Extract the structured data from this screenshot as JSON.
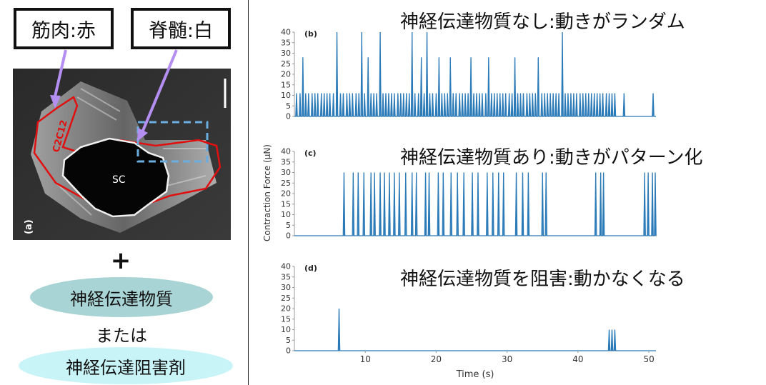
{
  "left": {
    "label_muscle": "筋肉:赤",
    "label_spinal": "脊髄:白",
    "panel_letter": "(a)",
    "cell_line": "C2C12",
    "sc_label": "SC",
    "plus": "+",
    "option_1": "神経伝達物質",
    "or_text": "または",
    "option_2": "神経伝達阻害剤"
  },
  "right": {
    "headline_b": "神経伝達物質なし:動きがランダム",
    "headline_c": "神経伝達物質あり:動きがパターン化",
    "headline_d": "神経伝達物質を阻害:動かなくなる"
  },
  "colors": {
    "line": "#2a7ab8",
    "muscle_outline": "#e01010",
    "spinal_outline": "#f0f0f0",
    "arrow": "#b48ef0",
    "dashed_box": "#6aaee0",
    "ellipse_1": "#a9d4d6",
    "ellipse_2": "#c8f4f8"
  },
  "chart_data": [
    {
      "type": "line",
      "panel": "(b)",
      "yticks": [
        0,
        5,
        10,
        15,
        20,
        25,
        30,
        35,
        40
      ],
      "ylim": [
        0,
        40
      ],
      "xlim": [
        0,
        51
      ],
      "spikes": [
        [
          0.3,
          11
        ],
        [
          0.8,
          11
        ],
        [
          1.2,
          28
        ],
        [
          1.6,
          11
        ],
        [
          2.0,
          11
        ],
        [
          2.5,
          11
        ],
        [
          2.9,
          11
        ],
        [
          3.3,
          11
        ],
        [
          3.8,
          11
        ],
        [
          4.2,
          11
        ],
        [
          4.6,
          11
        ],
        [
          5.0,
          11
        ],
        [
          5.5,
          11
        ],
        [
          6.0,
          40
        ],
        [
          6.5,
          11
        ],
        [
          6.9,
          11
        ],
        [
          7.4,
          11
        ],
        [
          7.8,
          11
        ],
        [
          8.2,
          11
        ],
        [
          8.7,
          11
        ],
        [
          9.1,
          11
        ],
        [
          9.5,
          40
        ],
        [
          9.9,
          11
        ],
        [
          10.4,
          28
        ],
        [
          10.8,
          11
        ],
        [
          11.2,
          11
        ],
        [
          11.6,
          11
        ],
        [
          12.1,
          40
        ],
        [
          12.5,
          11
        ],
        [
          12.9,
          11
        ],
        [
          13.3,
          11
        ],
        [
          13.7,
          11
        ],
        [
          14.1,
          11
        ],
        [
          14.6,
          11
        ],
        [
          15.0,
          11
        ],
        [
          15.4,
          11
        ],
        [
          15.8,
          11
        ],
        [
          16.2,
          11
        ],
        [
          16.6,
          40
        ],
        [
          17.0,
          11
        ],
        [
          17.5,
          11
        ],
        [
          17.9,
          28
        ],
        [
          18.3,
          11
        ],
        [
          18.7,
          40
        ],
        [
          19.1,
          11
        ],
        [
          19.5,
          11
        ],
        [
          20.0,
          11
        ],
        [
          20.4,
          28
        ],
        [
          20.8,
          11
        ],
        [
          21.2,
          11
        ],
        [
          21.6,
          11
        ],
        [
          22.0,
          28
        ],
        [
          22.4,
          11
        ],
        [
          22.8,
          11
        ],
        [
          23.3,
          11
        ],
        [
          23.7,
          11
        ],
        [
          24.1,
          11
        ],
        [
          24.5,
          11
        ],
        [
          24.9,
          28
        ],
        [
          25.3,
          11
        ],
        [
          25.7,
          11
        ],
        [
          26.1,
          11
        ],
        [
          26.5,
          11
        ],
        [
          27.0,
          11
        ],
        [
          27.4,
          28
        ],
        [
          27.8,
          11
        ],
        [
          28.2,
          11
        ],
        [
          28.6,
          11
        ],
        [
          29.0,
          11
        ],
        [
          29.4,
          11
        ],
        [
          29.8,
          11
        ],
        [
          30.3,
          11
        ],
        [
          30.7,
          11
        ],
        [
          31.1,
          28
        ],
        [
          31.5,
          11
        ],
        [
          31.9,
          11
        ],
        [
          32.3,
          11
        ],
        [
          32.8,
          11
        ],
        [
          33.2,
          11
        ],
        [
          33.6,
          11
        ],
        [
          34.0,
          11
        ],
        [
          34.4,
          28
        ],
        [
          34.9,
          11
        ],
        [
          35.3,
          11
        ],
        [
          35.7,
          11
        ],
        [
          36.1,
          11
        ],
        [
          36.5,
          11
        ],
        [
          36.9,
          11
        ],
        [
          37.3,
          11
        ],
        [
          37.8,
          40
        ],
        [
          38.2,
          11
        ],
        [
          38.6,
          11
        ],
        [
          39.0,
          11
        ],
        [
          39.4,
          11
        ],
        [
          39.8,
          11
        ],
        [
          40.3,
          11
        ],
        [
          40.7,
          11
        ],
        [
          41.1,
          11
        ],
        [
          41.5,
          11
        ],
        [
          41.9,
          11
        ],
        [
          42.3,
          11
        ],
        [
          42.7,
          11
        ],
        [
          43.1,
          11
        ],
        [
          43.5,
          11
        ],
        [
          44.0,
          11
        ],
        [
          44.4,
          11
        ],
        [
          44.8,
          11
        ],
        [
          45.2,
          11
        ],
        [
          46.5,
          11
        ],
        [
          50.6,
          11
        ]
      ]
    },
    {
      "type": "line",
      "panel": "(c)",
      "yticks": [
        0,
        5,
        10,
        15,
        20,
        25,
        30,
        35,
        40
      ],
      "ylim": [
        0,
        40
      ],
      "xlim": [
        0,
        51
      ],
      "spikes": [
        [
          7.0,
          30
        ],
        [
          8.3,
          30
        ],
        [
          9.0,
          30
        ],
        [
          9.8,
          30
        ],
        [
          10.8,
          30
        ],
        [
          11.3,
          30
        ],
        [
          12.1,
          30
        ],
        [
          12.7,
          30
        ],
        [
          13.4,
          30
        ],
        [
          14.1,
          30
        ],
        [
          14.8,
          30
        ],
        [
          15.7,
          30
        ],
        [
          16.6,
          30
        ],
        [
          17.2,
          30
        ],
        [
          18.5,
          30
        ],
        [
          19.0,
          30
        ],
        [
          20.3,
          30
        ],
        [
          21.0,
          30
        ],
        [
          22.1,
          30
        ],
        [
          23.0,
          30
        ],
        [
          23.9,
          30
        ],
        [
          25.1,
          30
        ],
        [
          25.9,
          30
        ],
        [
          27.2,
          30
        ],
        [
          28.0,
          30
        ],
        [
          28.8,
          30
        ],
        [
          29.5,
          30
        ],
        [
          31.3,
          30
        ],
        [
          32.2,
          30
        ],
        [
          33.0,
          30
        ],
        [
          35.0,
          30
        ],
        [
          35.5,
          30
        ],
        [
          42.5,
          30
        ],
        [
          43.2,
          30
        ],
        [
          43.6,
          30
        ],
        [
          49.4,
          30
        ],
        [
          49.9,
          30
        ],
        [
          50.5,
          30
        ],
        [
          50.9,
          30
        ]
      ]
    },
    {
      "type": "line",
      "panel": "(d)",
      "yticks": [
        0,
        5,
        10,
        15,
        20,
        25,
        30,
        35,
        40
      ],
      "xticks": [
        10,
        20,
        30,
        40,
        50
      ],
      "xlabel": "Time (s)",
      "ylabel": "Contraction Force (μN)",
      "ylim": [
        0,
        40
      ],
      "xlim": [
        0,
        51
      ],
      "spikes": [
        [
          6.3,
          20
        ],
        [
          44.4,
          10
        ],
        [
          44.8,
          10
        ],
        [
          45.2,
          10
        ]
      ]
    }
  ]
}
